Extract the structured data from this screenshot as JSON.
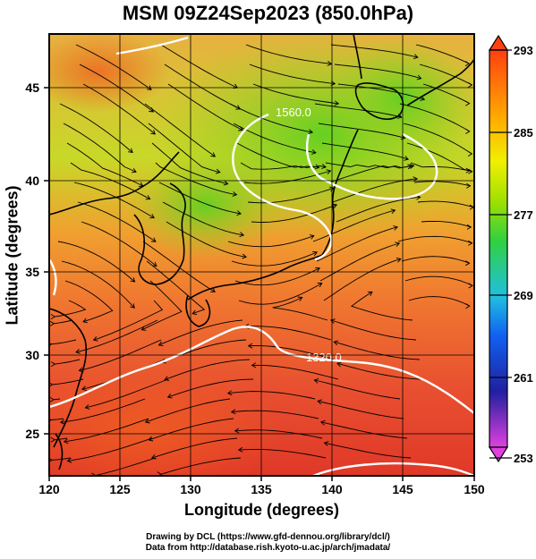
{
  "title": "MSM 09Z24Sep2023 (850.0hPa)",
  "x_axis": {
    "title": "Longitude (degrees)",
    "range": [
      120,
      150
    ],
    "ticks": [
      "120",
      "125",
      "130",
      "135",
      "140",
      "145",
      "150"
    ]
  },
  "y_axis": {
    "title": "Latitude  (degrees)",
    "range": [
      22.5,
      47.5
    ],
    "ticks": [
      "25",
      "30",
      "35",
      "40",
      "45"
    ]
  },
  "colorbar": {
    "ticks": [
      "293",
      "285",
      "277",
      "269",
      "261",
      "253"
    ],
    "range": [
      253,
      293
    ]
  },
  "contours": [
    {
      "label": "1560.0"
    },
    {
      "label": "1320.0"
    }
  ],
  "credits": [
    "Drawing by DCL (https://www.gfd-dennou.org/library/dcl/)",
    "Data from http://database.rish.kyoto-u.ac.jp/arch/jmadata/"
  ],
  "colors": {
    "warm": "#e8412a",
    "mid": "#f0a020",
    "cool": "#80d020",
    "frame": "#000000"
  }
}
